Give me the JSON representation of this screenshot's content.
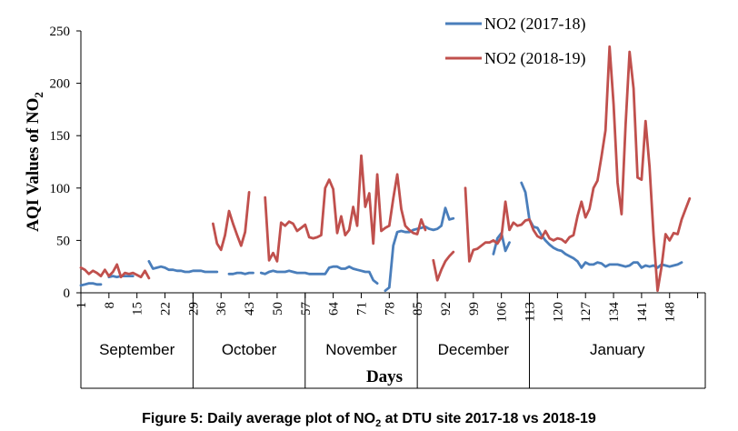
{
  "caption": {
    "main": "Figure 5: Daily average plot of NO",
    "sub": "2",
    "rest": " at DTU site 2017-18 vs 2018-19"
  },
  "chart_data": {
    "type": "line",
    "title": "",
    "ylabel": {
      "main": "AQI Values of NO",
      "sub": "2"
    },
    "xlabel": "Days",
    "ylim": [
      0,
      250
    ],
    "xlim": [
      1,
      156
    ],
    "yticks": [
      0,
      50,
      100,
      150,
      200,
      250
    ],
    "xticks": [
      1,
      8,
      15,
      22,
      29,
      36,
      43,
      50,
      57,
      64,
      71,
      78,
      85,
      92,
      99,
      106,
      113,
      120,
      127,
      134,
      141,
      148
    ],
    "months": [
      {
        "name": "September",
        "start": 1,
        "end": 29
      },
      {
        "name": "October",
        "start": 29,
        "end": 57
      },
      {
        "name": "November",
        "start": 57,
        "end": 85
      },
      {
        "name": "December",
        "start": 85,
        "end": 113
      },
      {
        "name": "January",
        "start": 113,
        "end": 156
      }
    ],
    "legend_position": "top-right",
    "grid": false,
    "series": [
      {
        "name": "NO2 (2017-18)",
        "color": "#4a7ebb",
        "segments": [
          [
            [
              1,
              7
            ],
            [
              2,
              8
            ],
            [
              3,
              9
            ],
            [
              4,
              9
            ],
            [
              5,
              8
            ],
            [
              6,
              8
            ]
          ],
          [
            [
              8,
              15
            ],
            [
              9,
              16
            ],
            [
              10,
              15
            ],
            [
              11,
              16
            ],
            [
              12,
              16
            ],
            [
              13,
              16
            ],
            [
              14,
              16
            ]
          ],
          [
            [
              18,
              30
            ],
            [
              19,
              23
            ],
            [
              20,
              24
            ],
            [
              21,
              25
            ],
            [
              22,
              24
            ],
            [
              23,
              22
            ],
            [
              24,
              22
            ],
            [
              25,
              21
            ],
            [
              26,
              21
            ],
            [
              27,
              20
            ],
            [
              28,
              20
            ],
            [
              29,
              21
            ],
            [
              30,
              21
            ],
            [
              31,
              21
            ],
            [
              32,
              20
            ],
            [
              33,
              20
            ],
            [
              34,
              20
            ],
            [
              35,
              20
            ]
          ],
          [
            [
              38,
              18
            ],
            [
              39,
              18
            ],
            [
              40,
              19
            ],
            [
              41,
              19
            ],
            [
              42,
              18
            ],
            [
              43,
              19
            ],
            [
              44,
              19
            ]
          ],
          [
            [
              46,
              19
            ],
            [
              47,
              18
            ],
            [
              48,
              20
            ],
            [
              49,
              21
            ],
            [
              50,
              20
            ],
            [
              51,
              20
            ],
            [
              52,
              20
            ],
            [
              53,
              21
            ],
            [
              54,
              20
            ],
            [
              55,
              19
            ],
            [
              56,
              19
            ],
            [
              57,
              19
            ],
            [
              58,
              18
            ],
            [
              59,
              18
            ],
            [
              60,
              18
            ],
            [
              61,
              18
            ],
            [
              62,
              18
            ],
            [
              63,
              24
            ],
            [
              64,
              25
            ],
            [
              65,
              25
            ],
            [
              66,
              23
            ],
            [
              67,
              23
            ],
            [
              68,
              25
            ],
            [
              69,
              23
            ],
            [
              70,
              22
            ],
            [
              71,
              21
            ],
            [
              72,
              20
            ],
            [
              73,
              20
            ],
            [
              74,
              12
            ],
            [
              75,
              9
            ]
          ],
          [
            [
              77,
              2
            ],
            [
              78,
              5
            ],
            [
              79,
              45
            ],
            [
              80,
              58
            ],
            [
              81,
              59
            ],
            [
              82,
              58
            ],
            [
              83,
              58
            ],
            [
              84,
              60
            ],
            [
              85,
              61
            ],
            [
              86,
              62
            ],
            [
              87,
              63
            ],
            [
              88,
              61
            ],
            [
              89,
              60
            ],
            [
              90,
              61
            ],
            [
              91,
              64
            ],
            [
              92,
              81
            ],
            [
              93,
              70
            ],
            [
              94,
              71
            ]
          ],
          [
            [
              104,
              37
            ],
            [
              105,
              52
            ],
            [
              106,
              57
            ],
            [
              107,
              40
            ],
            [
              108,
              48
            ]
          ],
          [
            [
              111,
              105
            ],
            [
              112,
              96
            ],
            [
              113,
              70
            ],
            [
              114,
              63
            ],
            [
              115,
              62
            ],
            [
              116,
              55
            ],
            [
              117,
              50
            ],
            [
              118,
              46
            ],
            [
              119,
              43
            ],
            [
              120,
              41
            ],
            [
              121,
              40
            ],
            [
              122,
              37
            ],
            [
              123,
              35
            ],
            [
              124,
              33
            ],
            [
              125,
              30
            ],
            [
              126,
              24
            ],
            [
              127,
              29
            ],
            [
              128,
              27
            ],
            [
              129,
              27
            ],
            [
              130,
              29
            ],
            [
              131,
              28
            ],
            [
              132,
              25
            ],
            [
              133,
              27
            ],
            [
              134,
              27
            ],
            [
              135,
              27
            ],
            [
              136,
              26
            ],
            [
              137,
              25
            ],
            [
              138,
              26
            ],
            [
              139,
              29
            ],
            [
              140,
              29
            ],
            [
              141,
              24
            ],
            [
              142,
              26
            ],
            [
              143,
              25
            ],
            [
              144,
              26
            ],
            [
              145,
              24
            ],
            [
              146,
              27
            ],
            [
              147,
              26
            ],
            [
              148,
              25
            ],
            [
              149,
              26
            ],
            [
              150,
              27
            ],
            [
              151,
              29
            ]
          ]
        ]
      },
      {
        "name": "NO2 (2018-19)",
        "color": "#c0504d",
        "segments": [
          [
            [
              1,
              24
            ],
            [
              2,
              22
            ],
            [
              3,
              18
            ],
            [
              4,
              21
            ],
            [
              5,
              19
            ],
            [
              6,
              16
            ],
            [
              7,
              22
            ],
            [
              8,
              16
            ],
            [
              9,
              20
            ],
            [
              10,
              27
            ],
            [
              11,
              15
            ],
            [
              12,
              19
            ],
            [
              13,
              18
            ],
            [
              14,
              19
            ],
            [
              15,
              17
            ],
            [
              16,
              15
            ],
            [
              17,
              21
            ],
            [
              18,
              14
            ]
          ],
          [
            [
              34,
              66
            ],
            [
              35,
              47
            ],
            [
              36,
              41
            ],
            [
              37,
              55
            ],
            [
              38,
              78
            ],
            [
              39,
              66
            ],
            [
              40,
              55
            ],
            [
              41,
              45
            ],
            [
              42,
              58
            ],
            [
              43,
              96
            ]
          ],
          [
            [
              47,
              91
            ],
            [
              48,
              31
            ],
            [
              49,
              38
            ],
            [
              50,
              30
            ],
            [
              51,
              67
            ],
            [
              52,
              64
            ],
            [
              53,
              68
            ],
            [
              54,
              66
            ],
            [
              55,
              59
            ],
            [
              56,
              62
            ],
            [
              57,
              65
            ],
            [
              58,
              53
            ],
            [
              59,
              52
            ],
            [
              60,
              53
            ],
            [
              61,
              55
            ],
            [
              62,
              100
            ],
            [
              63,
              108
            ],
            [
              64,
              99
            ],
            [
              65,
              57
            ],
            [
              66,
              73
            ],
            [
              67,
              55
            ],
            [
              68,
              60
            ],
            [
              69,
              82
            ],
            [
              70,
              64
            ],
            [
              71,
              131
            ],
            [
              72,
              82
            ],
            [
              73,
              95
            ],
            [
              74,
              47
            ],
            [
              75,
              113
            ],
            [
              76,
              59
            ],
            [
              77,
              62
            ],
            [
              78,
              64
            ],
            [
              79,
              90
            ],
            [
              80,
              113
            ],
            [
              81,
              80
            ],
            [
              82,
              64
            ],
            [
              83,
              60
            ],
            [
              84,
              57
            ],
            [
              85,
              56
            ],
            [
              86,
              70
            ],
            [
              87,
              60
            ]
          ],
          [
            [
              89,
              31
            ],
            [
              90,
              12
            ],
            [
              91,
              22
            ],
            [
              92,
              30
            ],
            [
              93,
              35
            ],
            [
              94,
              39
            ]
          ],
          [
            [
              97,
              100
            ],
            [
              98,
              30
            ],
            [
              99,
              41
            ],
            [
              100,
              42
            ],
            [
              101,
              45
            ],
            [
              102,
              48
            ],
            [
              103,
              48
            ],
            [
              104,
              50
            ],
            [
              105,
              47
            ],
            [
              106,
              53
            ],
            [
              107,
              87
            ],
            [
              108,
              60
            ],
            [
              109,
              67
            ],
            [
              110,
              64
            ],
            [
              111,
              65
            ],
            [
              112,
              69
            ],
            [
              113,
              70
            ],
            [
              114,
              60
            ],
            [
              115,
              54
            ],
            [
              116,
              52
            ],
            [
              117,
              59
            ],
            [
              118,
              52
            ],
            [
              119,
              50
            ],
            [
              120,
              52
            ],
            [
              121,
              51
            ],
            [
              122,
              48
            ],
            [
              123,
              53
            ],
            [
              124,
              55
            ],
            [
              125,
              73
            ],
            [
              126,
              87
            ],
            [
              127,
              72
            ],
            [
              128,
              80
            ],
            [
              129,
              100
            ],
            [
              130,
              107
            ],
            [
              131,
              130
            ],
            [
              132,
              155
            ],
            [
              133,
              235
            ],
            [
              134,
              180
            ],
            [
              135,
              105
            ],
            [
              136,
              75
            ],
            [
              137,
              160
            ],
            [
              138,
              230
            ],
            [
              139,
              195
            ],
            [
              140,
              110
            ],
            [
              141,
              108
            ],
            [
              142,
              164
            ],
            [
              143,
              120
            ],
            [
              144,
              55
            ],
            [
              145,
              2
            ],
            [
              146,
              25
            ],
            [
              147,
              56
            ],
            [
              148,
              50
            ],
            [
              149,
              57
            ],
            [
              150,
              56
            ],
            [
              151,
              70
            ],
            [
              152,
              80
            ],
            [
              153,
              90
            ]
          ]
        ]
      }
    ]
  }
}
